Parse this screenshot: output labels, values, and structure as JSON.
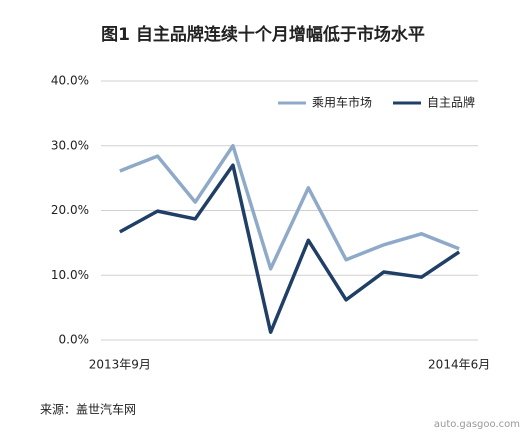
{
  "chart_data": {
    "type": "line",
    "title": "图1  自主品牌连续十个月增幅低于市场水平",
    "categories": [
      "2013年9月",
      null,
      null,
      null,
      null,
      null,
      null,
      null,
      null,
      "2014年6月"
    ],
    "series": [
      {
        "name": "乘用车市场",
        "color": "#8eaac8",
        "values": [
          26.1,
          28.4,
          21.3,
          30.0,
          11.0,
          23.5,
          12.4,
          14.7,
          16.4,
          14.1
        ]
      },
      {
        "name": "自主品牌",
        "color": "#1f3f66",
        "values": [
          16.7,
          19.9,
          18.7,
          27.0,
          1.2,
          15.4,
          6.2,
          10.5,
          9.7,
          13.6
        ]
      }
    ],
    "ylim": [
      0,
      40
    ],
    "yticks": [
      {
        "value": 0,
        "label": "0.0%"
      },
      {
        "value": 10,
        "label": "10.0%"
      },
      {
        "value": 20,
        "label": "20.0%"
      },
      {
        "value": 30,
        "label": "30.0%"
      },
      {
        "value": 40,
        "label": "40.0%"
      }
    ],
    "grid": true,
    "legend": "top-right",
    "source": "来源：盖世汽车网",
    "watermark": "auto.gasgoo.com"
  }
}
